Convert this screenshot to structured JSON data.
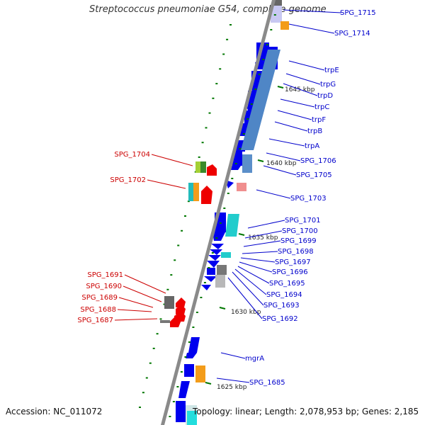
{
  "title": "Streptococcus pneumoniae G54, complete genome",
  "footer": {
    "accession": "Accession: NC_011072",
    "topology": "Topology: linear; Length: 2,078,953 bp; Genes: 2,185"
  },
  "colors": {
    "plus_strand_label": "#0000cc",
    "minus_strand_label": "#cc0000",
    "backbone": "#888888",
    "tick": "#007700"
  },
  "kbp_ticks": [
    "1645 kbp",
    "1640 kbp",
    "1635 kbp",
    "1630 kbp",
    "1625 kbp"
  ],
  "right_labels": [
    "SPG_1715",
    "SPG_1714",
    "trpE",
    "trpG",
    "trpD",
    "trpC",
    "trpF",
    "trpB",
    "trpA",
    "SPG_1706",
    "SPG_1705",
    "SPG_1703",
    "SPG_1701",
    "SPG_1700",
    "SPG_1699",
    "SPG_1698",
    "SPG_1697",
    "SPG_1696",
    "SPG_1695",
    "SPG_1694",
    "SPG_1693",
    "SPG_1692",
    "mgrA",
    "SPG_1685"
  ],
  "left_labels": [
    "SPG_1704",
    "SPG_1702",
    "SPG_1691",
    "SPG_1690",
    "SPG_1689",
    "SPG_1688",
    "SPG_1687"
  ]
}
